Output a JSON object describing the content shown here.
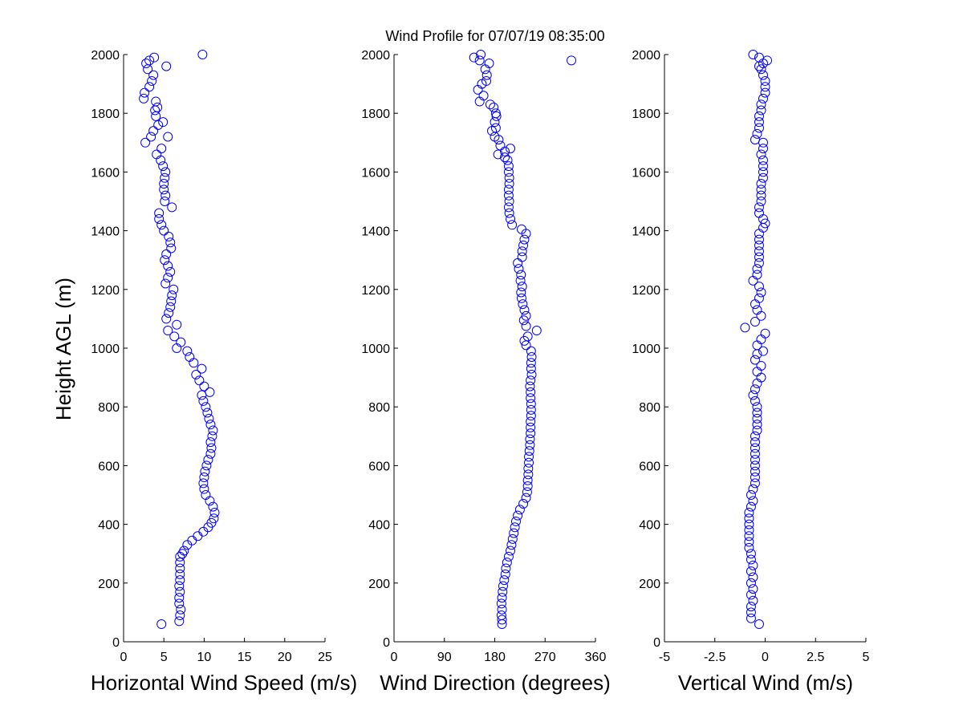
{
  "figure": {
    "title": "Wind Profile for  07/07/19 08:35:00",
    "ylabel": "Height AGL (m)"
  },
  "colors": {
    "marker": "#0000ff",
    "axis": "#000000"
  },
  "chart_data": [
    {
      "type": "scatter",
      "marker": "open-circle",
      "xlabel": "Horizontal Wind Speed (m/s)",
      "ylabel": "Height AGL (m)",
      "xlim": [
        0,
        25
      ],
      "ylim": [
        0,
        2000
      ],
      "xticks": [
        0,
        5,
        10,
        15,
        20,
        25
      ],
      "xtick_labels": [
        "0",
        "5",
        "10",
        "15",
        "20",
        "25"
      ],
      "yticks": [
        0,
        200,
        400,
        600,
        800,
        1000,
        1200,
        1400,
        1600,
        1800,
        2000
      ],
      "ytick_labels": [
        "0",
        "200",
        "400",
        "600",
        "800",
        "1000",
        "1200",
        "1400",
        "1600",
        "1800",
        "2000"
      ],
      "grid": false,
      "points": [
        [
          4.7,
          60
        ],
        [
          6.9,
          70
        ],
        [
          7.0,
          90
        ],
        [
          7.1,
          110
        ],
        [
          6.9,
          130
        ],
        [
          6.9,
          150
        ],
        [
          7.0,
          170
        ],
        [
          6.9,
          190
        ],
        [
          7.0,
          210
        ],
        [
          7.0,
          230
        ],
        [
          7.0,
          250
        ],
        [
          7.0,
          270
        ],
        [
          7.0,
          290
        ],
        [
          7.3,
          300
        ],
        [
          7.5,
          310
        ],
        [
          7.9,
          330
        ],
        [
          8.5,
          345
        ],
        [
          9.2,
          360
        ],
        [
          9.9,
          375
        ],
        [
          10.5,
          390
        ],
        [
          10.9,
          405
        ],
        [
          11.2,
          420
        ],
        [
          11.3,
          440
        ],
        [
          11.1,
          460
        ],
        [
          10.7,
          480
        ],
        [
          10.2,
          500
        ],
        [
          10.0,
          520
        ],
        [
          9.9,
          540
        ],
        [
          10.0,
          560
        ],
        [
          10.1,
          580
        ],
        [
          10.3,
          600
        ],
        [
          10.5,
          620
        ],
        [
          10.8,
          640
        ],
        [
          10.9,
          660
        ],
        [
          10.8,
          680
        ],
        [
          11.0,
          700
        ],
        [
          11.1,
          720
        ],
        [
          10.8,
          740
        ],
        [
          10.6,
          760
        ],
        [
          10.4,
          780
        ],
        [
          10.2,
          800
        ],
        [
          9.9,
          820
        ],
        [
          9.7,
          840
        ],
        [
          10.7,
          850
        ],
        [
          10.0,
          870
        ],
        [
          9.4,
          890
        ],
        [
          9.0,
          910
        ],
        [
          9.7,
          930
        ],
        [
          8.7,
          950
        ],
        [
          8.2,
          970
        ],
        [
          7.9,
          990
        ],
        [
          6.6,
          1000
        ],
        [
          7.1,
          1020
        ],
        [
          6.3,
          1040
        ],
        [
          5.5,
          1060
        ],
        [
          6.6,
          1080
        ],
        [
          5.3,
          1100
        ],
        [
          5.6,
          1120
        ],
        [
          5.8,
          1140
        ],
        [
          5.9,
          1160
        ],
        [
          6.0,
          1180
        ],
        [
          6.2,
          1200
        ],
        [
          5.2,
          1220
        ],
        [
          5.5,
          1240
        ],
        [
          5.8,
          1260
        ],
        [
          5.5,
          1280
        ],
        [
          5.1,
          1300
        ],
        [
          5.3,
          1320
        ],
        [
          5.9,
          1340
        ],
        [
          5.8,
          1360
        ],
        [
          5.6,
          1380
        ],
        [
          5.0,
          1400
        ],
        [
          4.7,
          1420
        ],
        [
          4.4,
          1440
        ],
        [
          4.4,
          1460
        ],
        [
          6.0,
          1480
        ],
        [
          5.1,
          1500
        ],
        [
          5.2,
          1520
        ],
        [
          5.0,
          1540
        ],
        [
          5.0,
          1560
        ],
        [
          5.1,
          1580
        ],
        [
          5.2,
          1600
        ],
        [
          4.9,
          1620
        ],
        [
          4.6,
          1640
        ],
        [
          4.1,
          1660
        ],
        [
          4.7,
          1680
        ],
        [
          2.7,
          1700
        ],
        [
          5.5,
          1720
        ],
        [
          3.4,
          1720
        ],
        [
          3.7,
          1740
        ],
        [
          4.3,
          1760
        ],
        [
          4.9,
          1770
        ],
        [
          4.0,
          1790
        ],
        [
          3.9,
          1810
        ],
        [
          4.2,
          1820
        ],
        [
          4.0,
          1840
        ],
        [
          2.5,
          1850
        ],
        [
          2.6,
          1870
        ],
        [
          3.2,
          1890
        ],
        [
          3.5,
          1910
        ],
        [
          3.7,
          1930
        ],
        [
          3.0,
          1950
        ],
        [
          5.3,
          1960
        ],
        [
          2.8,
          1970
        ],
        [
          3.2,
          1980
        ],
        [
          3.8,
          1990
        ],
        [
          9.8,
          2000
        ]
      ]
    },
    {
      "type": "scatter",
      "marker": "open-circle",
      "xlabel": "Wind Direction (degrees)",
      "ylabel": "",
      "xlim": [
        0,
        360
      ],
      "ylim": [
        0,
        2000
      ],
      "xticks": [
        0,
        90,
        180,
        270,
        360
      ],
      "xtick_labels": [
        "0",
        "90",
        "180",
        "270",
        "360"
      ],
      "yticks": [
        0,
        200,
        400,
        600,
        800,
        1000,
        1200,
        1400,
        1600,
        1800,
        2000
      ],
      "ytick_labels": [
        "0",
        "200",
        "400",
        "600",
        "800",
        "1000",
        "1200",
        "1400",
        "1600",
        "1800",
        "2000"
      ],
      "grid": false,
      "points": [
        [
          193,
          60
        ],
        [
          193,
          75
        ],
        [
          192,
          90
        ],
        [
          193,
          110
        ],
        [
          192,
          130
        ],
        [
          193,
          150
        ],
        [
          194,
          170
        ],
        [
          195,
          190
        ],
        [
          197,
          210
        ],
        [
          199,
          230
        ],
        [
          200,
          250
        ],
        [
          202,
          270
        ],
        [
          205,
          290
        ],
        [
          208,
          310
        ],
        [
          210,
          330
        ],
        [
          212,
          350
        ],
        [
          214,
          370
        ],
        [
          216,
          390
        ],
        [
          218,
          410
        ],
        [
          221,
          430
        ],
        [
          225,
          450
        ],
        [
          231,
          470
        ],
        [
          236,
          490
        ],
        [
          238,
          510
        ],
        [
          239,
          530
        ],
        [
          239,
          550
        ],
        [
          240,
          570
        ],
        [
          240,
          590
        ],
        [
          241,
          610
        ],
        [
          241,
          630
        ],
        [
          242,
          650
        ],
        [
          243,
          670
        ],
        [
          243,
          690
        ],
        [
          244,
          710
        ],
        [
          244,
          730
        ],
        [
          244,
          750
        ],
        [
          245,
          770
        ],
        [
          245,
          790
        ],
        [
          245,
          810
        ],
        [
          244,
          830
        ],
        [
          244,
          850
        ],
        [
          243,
          870
        ],
        [
          244,
          890
        ],
        [
          246,
          910
        ],
        [
          245,
          930
        ],
        [
          245,
          950
        ],
        [
          246,
          970
        ],
        [
          245,
          990
        ],
        [
          236,
          1010
        ],
        [
          233,
          1025
        ],
        [
          239,
          1040
        ],
        [
          255,
          1060
        ],
        [
          236,
          1075
        ],
        [
          232,
          1095
        ],
        [
          236,
          1110
        ],
        [
          233,
          1130
        ],
        [
          230,
          1150
        ],
        [
          228,
          1170
        ],
        [
          227,
          1190
        ],
        [
          229,
          1210
        ],
        [
          226,
          1230
        ],
        [
          227,
          1250
        ],
        [
          223,
          1270
        ],
        [
          221,
          1290
        ],
        [
          229,
          1310
        ],
        [
          229,
          1330
        ],
        [
          231,
          1350
        ],
        [
          233,
          1370
        ],
        [
          236,
          1390
        ],
        [
          228,
          1405
        ],
        [
          211,
          1420
        ],
        [
          208,
          1440
        ],
        [
          206,
          1460
        ],
        [
          205,
          1480
        ],
        [
          206,
          1500
        ],
        [
          205,
          1520
        ],
        [
          205,
          1540
        ],
        [
          206,
          1560
        ],
        [
          206,
          1580
        ],
        [
          205,
          1600
        ],
        [
          205,
          1620
        ],
        [
          203,
          1640
        ],
        [
          198,
          1650
        ],
        [
          186,
          1660
        ],
        [
          198,
          1670
        ],
        [
          208,
          1680
        ],
        [
          190,
          1690
        ],
        [
          187,
          1710
        ],
        [
          180,
          1720
        ],
        [
          175,
          1740
        ],
        [
          182,
          1750
        ],
        [
          180,
          1770
        ],
        [
          183,
          1790
        ],
        [
          182,
          1800
        ],
        [
          178,
          1820
        ],
        [
          172,
          1830
        ],
        [
          153,
          1840
        ],
        [
          160,
          1860
        ],
        [
          150,
          1880
        ],
        [
          157,
          1900
        ],
        [
          165,
          1910
        ],
        [
          166,
          1930
        ],
        [
          163,
          1950
        ],
        [
          170,
          1970
        ],
        [
          153,
          1980
        ],
        [
          143,
          1990
        ],
        [
          155,
          2000
        ],
        [
          317,
          1980
        ]
      ]
    },
    {
      "type": "scatter",
      "marker": "open-circle",
      "xlabel": "Vertical Wind (m/s)",
      "ylabel": "",
      "xlim": [
        -5,
        5
      ],
      "ylim": [
        0,
        2000
      ],
      "xticks": [
        -5,
        -2.5,
        0,
        2.5,
        5
      ],
      "xtick_labels": [
        "-5",
        "-2.5",
        "0",
        "2.5",
        "5"
      ],
      "yticks": [
        0,
        200,
        400,
        600,
        800,
        1000,
        1200,
        1400,
        1600,
        1800,
        2000
      ],
      "ytick_labels": [
        "0",
        "200",
        "400",
        "600",
        "800",
        "1000",
        "1200",
        "1400",
        "1600",
        "1800",
        "2000"
      ],
      "grid": false,
      "points": [
        [
          -0.3,
          60
        ],
        [
          -0.7,
          80
        ],
        [
          -0.7,
          100
        ],
        [
          -0.7,
          120
        ],
        [
          -0.6,
          140
        ],
        [
          -0.7,
          160
        ],
        [
          -0.6,
          180
        ],
        [
          -0.7,
          200
        ],
        [
          -0.6,
          220
        ],
        [
          -0.7,
          240
        ],
        [
          -0.6,
          260
        ],
        [
          -0.7,
          280
        ],
        [
          -0.7,
          300
        ],
        [
          -0.8,
          320
        ],
        [
          -0.8,
          340
        ],
        [
          -0.8,
          360
        ],
        [
          -0.8,
          380
        ],
        [
          -0.8,
          400
        ],
        [
          -0.8,
          420
        ],
        [
          -0.8,
          440
        ],
        [
          -0.7,
          460
        ],
        [
          -0.6,
          480
        ],
        [
          -0.7,
          500
        ],
        [
          -0.6,
          520
        ],
        [
          -0.5,
          540
        ],
        [
          -0.5,
          560
        ],
        [
          -0.5,
          580
        ],
        [
          -0.5,
          600
        ],
        [
          -0.5,
          620
        ],
        [
          -0.5,
          640
        ],
        [
          -0.5,
          660
        ],
        [
          -0.5,
          680
        ],
        [
          -0.5,
          700
        ],
        [
          -0.4,
          720
        ],
        [
          -0.4,
          740
        ],
        [
          -0.4,
          760
        ],
        [
          -0.4,
          780
        ],
        [
          -0.4,
          800
        ],
        [
          -0.5,
          820
        ],
        [
          -0.6,
          840
        ],
        [
          -0.5,
          860
        ],
        [
          -0.4,
          880
        ],
        [
          -0.2,
          900
        ],
        [
          -0.4,
          920
        ],
        [
          -0.2,
          940
        ],
        [
          -0.5,
          960
        ],
        [
          -0.4,
          980
        ],
        [
          -0.1,
          990
        ],
        [
          -0.4,
          1010
        ],
        [
          -0.2,
          1030
        ],
        [
          0.0,
          1050
        ],
        [
          -1.0,
          1070
        ],
        [
          -0.5,
          1090
        ],
        [
          -0.2,
          1110
        ],
        [
          -0.4,
          1130
        ],
        [
          -0.5,
          1150
        ],
        [
          -0.3,
          1170
        ],
        [
          -0.2,
          1190
        ],
        [
          -0.3,
          1210
        ],
        [
          -0.6,
          1230
        ],
        [
          -0.4,
          1250
        ],
        [
          -0.4,
          1270
        ],
        [
          -0.3,
          1290
        ],
        [
          -0.3,
          1310
        ],
        [
          -0.3,
          1330
        ],
        [
          -0.3,
          1350
        ],
        [
          -0.3,
          1370
        ],
        [
          -0.3,
          1390
        ],
        [
          -0.1,
          1410
        ],
        [
          0.0,
          1425
        ],
        [
          -0.1,
          1440
        ],
        [
          -0.3,
          1460
        ],
        [
          -0.3,
          1480
        ],
        [
          -0.2,
          1500
        ],
        [
          -0.2,
          1520
        ],
        [
          -0.2,
          1540
        ],
        [
          -0.2,
          1560
        ],
        [
          -0.1,
          1580
        ],
        [
          -0.1,
          1600
        ],
        [
          -0.1,
          1620
        ],
        [
          -0.1,
          1640
        ],
        [
          -0.2,
          1660
        ],
        [
          -0.1,
          1680
        ],
        [
          -0.1,
          1700
        ],
        [
          -0.5,
          1710
        ],
        [
          -0.4,
          1730
        ],
        [
          -0.3,
          1750
        ],
        [
          -0.3,
          1770
        ],
        [
          -0.3,
          1790
        ],
        [
          -0.2,
          1810
        ],
        [
          -0.2,
          1830
        ],
        [
          -0.1,
          1850
        ],
        [
          0.0,
          1870
        ],
        [
          0.0,
          1890
        ],
        [
          0.0,
          1910
        ],
        [
          -0.1,
          1930
        ],
        [
          -0.2,
          1950
        ],
        [
          -0.3,
          1960
        ],
        [
          -0.1,
          1970
        ],
        [
          0.1,
          1980
        ],
        [
          -0.3,
          1990
        ],
        [
          -0.6,
          2000
        ]
      ]
    }
  ]
}
